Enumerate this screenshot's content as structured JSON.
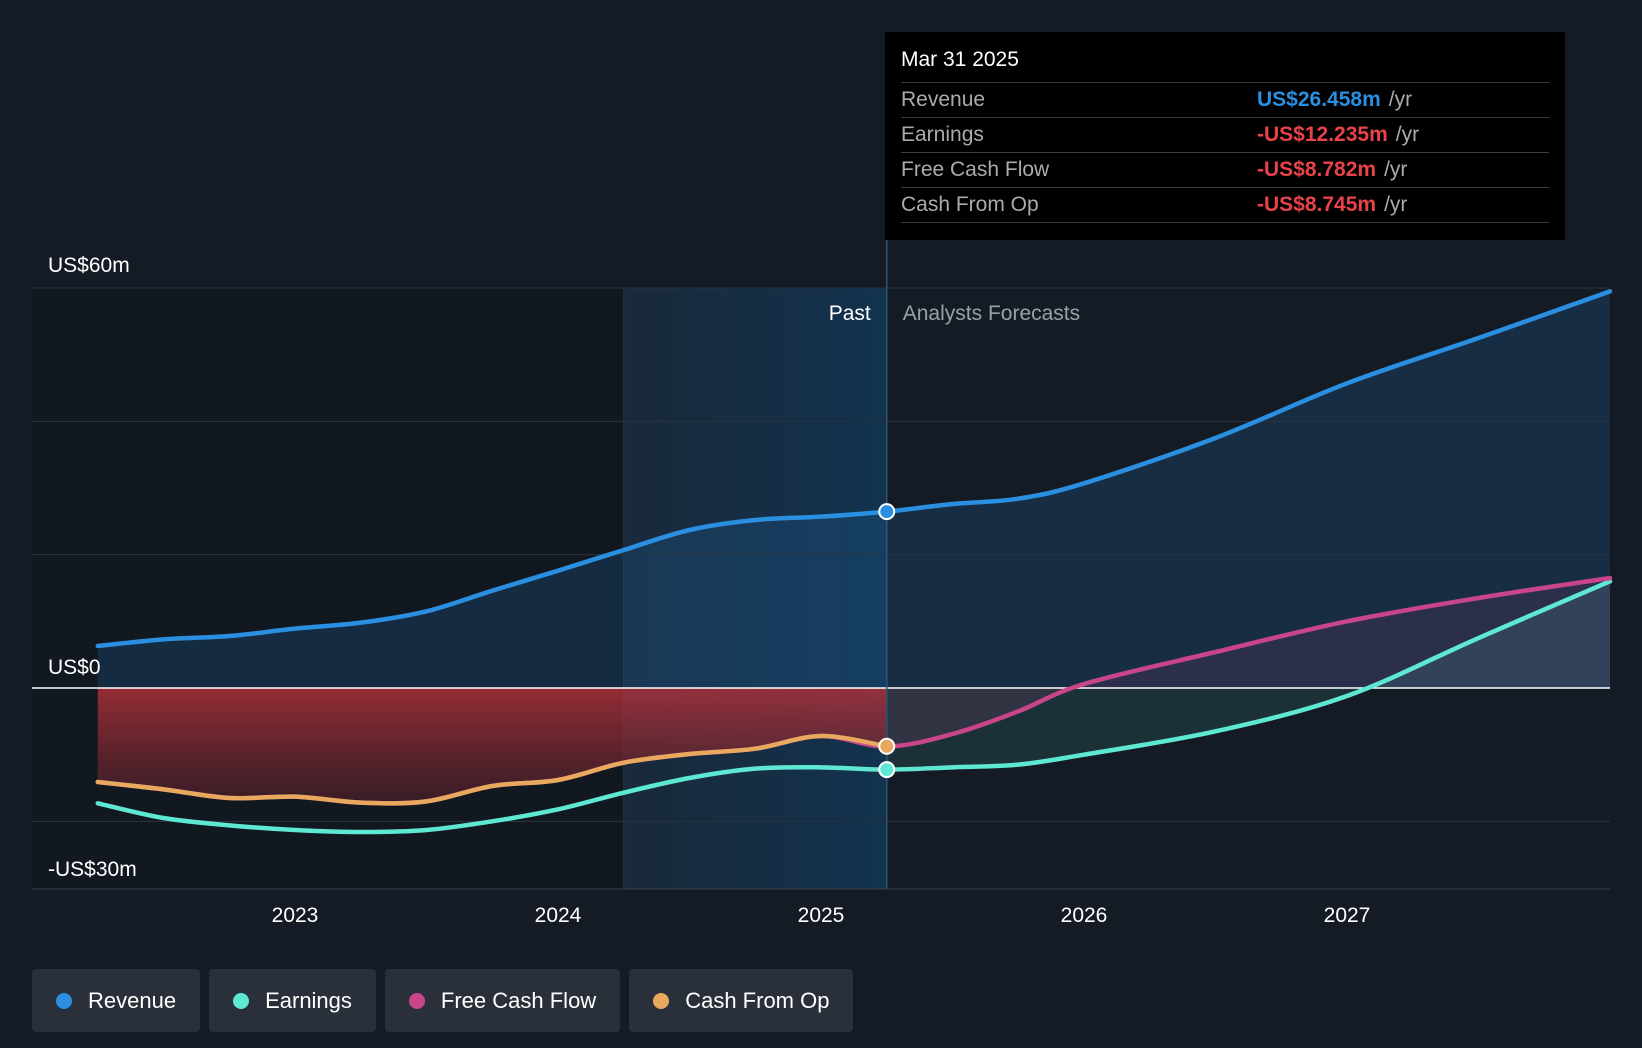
{
  "chart_data": {
    "type": "area",
    "y_unit": "US$m",
    "ylim": [
      -30,
      60
    ],
    "y_ticks": [
      {
        "value": 60,
        "label": "US$60m"
      },
      {
        "value": 0,
        "label": "US$0"
      },
      {
        "value": -30,
        "label": "-US$30m"
      }
    ],
    "x_ticks": [
      {
        "value": 2023,
        "label": "2023"
      },
      {
        "value": 2024,
        "label": "2024"
      },
      {
        "value": 2025,
        "label": "2025"
      },
      {
        "value": 2026,
        "label": "2026"
      },
      {
        "value": 2027,
        "label": "2027"
      }
    ],
    "xlim": [
      2022.0,
      2028.0
    ],
    "divider_x": 2025.25,
    "past_shade_start": 2024.25,
    "past_label": "Past",
    "forecast_label": "Analysts Forecasts",
    "series": [
      {
        "name": "Revenue",
        "color": "#2a8fe0",
        "x": [
          2022.25,
          2022.5,
          2022.75,
          2023.0,
          2023.25,
          2023.5,
          2023.75,
          2024.0,
          2024.25,
          2024.5,
          2024.75,
          2025.0,
          2025.25,
          2025.5,
          2025.75,
          2026.0,
          2026.5,
          2027.0,
          2027.5,
          2028.0
        ],
        "values": [
          6.3,
          7.3,
          7.8,
          8.9,
          9.8,
          11.5,
          14.6,
          17.6,
          20.7,
          23.7,
          25.2,
          25.7,
          26.46,
          27.6,
          28.4,
          30.7,
          37.5,
          45.7,
          52.5,
          59.5
        ]
      },
      {
        "name": "Earnings",
        "color": "#5ee8d4",
        "x": [
          2022.25,
          2022.5,
          2022.75,
          2023.0,
          2023.25,
          2023.5,
          2023.75,
          2024.0,
          2024.25,
          2024.5,
          2024.75,
          2025.0,
          2025.25,
          2025.5,
          2025.75,
          2026.0,
          2026.5,
          2027.0,
          2027.5,
          2028.0
        ],
        "values": [
          -17.3,
          -19.5,
          -20.6,
          -21.3,
          -21.6,
          -21.3,
          -20.0,
          -18.2,
          -15.7,
          -13.5,
          -12.1,
          -11.9,
          -12.24,
          -11.9,
          -11.5,
          -10.0,
          -6.5,
          -1.2,
          7.5,
          16.0
        ]
      },
      {
        "name": "Free Cash Flow",
        "color": "#c8458a",
        "x": [
          2022.25,
          2022.5,
          2022.75,
          2023.0,
          2023.25,
          2023.5,
          2023.75,
          2024.0,
          2024.25,
          2024.5,
          2024.75,
          2025.0,
          2025.25,
          2025.5,
          2025.75,
          2026.0,
          2026.5,
          2027.0,
          2027.5,
          2028.0
        ],
        "values": [
          -14.1,
          -15.2,
          -16.5,
          -16.3,
          -17.2,
          -17.0,
          -14.7,
          -13.8,
          -11.2,
          -9.9,
          -9.1,
          -7.2,
          -8.78,
          -6.9,
          -3.5,
          0.6,
          5.4,
          10.0,
          13.5,
          16.5
        ]
      },
      {
        "name": "Cash From Op",
        "color": "#e8a95e",
        "x": [
          2022.25,
          2022.5,
          2022.75,
          2023.0,
          2023.25,
          2023.5,
          2023.75,
          2024.0,
          2024.25,
          2024.5,
          2024.75,
          2025.0,
          2025.25
        ],
        "values": [
          -14.1,
          -15.2,
          -16.5,
          -16.3,
          -17.2,
          -17.0,
          -14.7,
          -13.8,
          -11.2,
          -9.9,
          -9.1,
          -7.2,
          -8.745
        ]
      }
    ]
  },
  "tooltip": {
    "date": "Mar 31 2025",
    "rows": [
      {
        "label": "Revenue",
        "value": "US$26.458m",
        "unit": "/yr",
        "color": "#2a8fe0"
      },
      {
        "label": "Earnings",
        "value": "-US$12.235m",
        "unit": "/yr",
        "color": "#e8424a"
      },
      {
        "label": "Free Cash Flow",
        "value": "-US$8.782m",
        "unit": "/yr",
        "color": "#e8424a"
      },
      {
        "label": "Cash From Op",
        "value": "-US$8.745m",
        "unit": "/yr",
        "color": "#e8424a"
      }
    ]
  },
  "legend": [
    {
      "label": "Revenue",
      "color": "#2a8fe0"
    },
    {
      "label": "Earnings",
      "color": "#5ee8d4"
    },
    {
      "label": "Free Cash Flow",
      "color": "#c8458a"
    },
    {
      "label": "Cash From Op",
      "color": "#e8a95e"
    }
  ]
}
